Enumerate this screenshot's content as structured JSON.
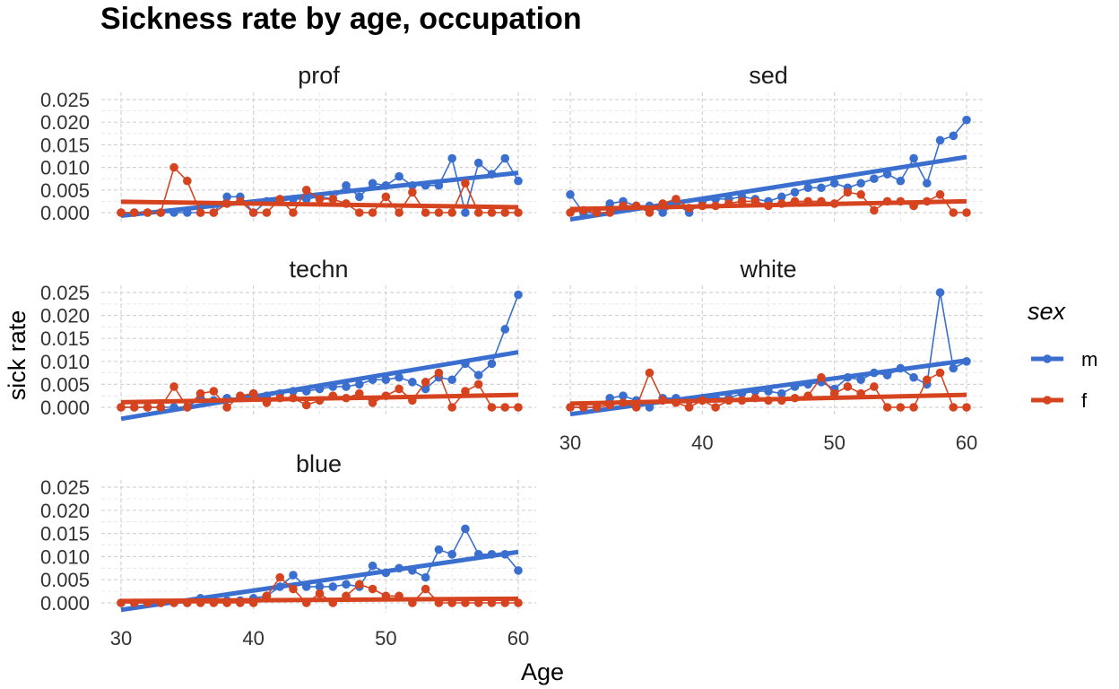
{
  "chart_data": {
    "type": "line",
    "title": "Sickness rate by age, occupation",
    "xlabel": "Age",
    "ylabel": "sick rate",
    "xlim": [
      30,
      60
    ],
    "ylim": [
      0,
      0.025
    ],
    "x_ticks": [
      30,
      40,
      50,
      60
    ],
    "y_ticks": [
      0.0,
      0.005,
      0.01,
      0.015,
      0.02,
      0.025
    ],
    "y_tick_labels": [
      "0.000",
      "0.005",
      "0.010",
      "0.015",
      "0.020",
      "0.025"
    ],
    "grid": true,
    "legend": {
      "title": "sex",
      "placement": "right",
      "entries": [
        {
          "label": "m",
          "color": "#3a6fd0"
        },
        {
          "label": "f",
          "color": "#d6431f"
        }
      ]
    },
    "colors": {
      "m": "#3a6fd0",
      "f": "#d6431f"
    },
    "x": [
      30,
      31,
      32,
      33,
      34,
      35,
      36,
      37,
      38,
      39,
      40,
      41,
      42,
      43,
      44,
      45,
      46,
      47,
      48,
      49,
      50,
      51,
      52,
      53,
      54,
      55,
      56,
      57,
      58,
      59,
      60
    ],
    "facets": [
      {
        "name": "prof",
        "series": [
          {
            "name": "m",
            "values": [
              0,
              0,
              0,
              0,
              0,
              0,
              0,
              0,
              0.0035,
              0.0035,
              0,
              0.0025,
              0.0025,
              0.003,
              0.003,
              0.0035,
              0.003,
              0.006,
              0.0035,
              0.0065,
              0.006,
              0.008,
              0.006,
              0.006,
              0.006,
              0.012,
              0,
              0.011,
              0.0085,
              0.012,
              0.007
            ],
            "trend": [
              -0.0007,
              0.0088
            ]
          },
          {
            "name": "f",
            "values": [
              0,
              0,
              0,
              0,
              0.01,
              0.007,
              0,
              0,
              0.002,
              0.0025,
              0,
              0,
              0.003,
              0,
              0.005,
              0.003,
              0.003,
              0.002,
              0,
              0,
              0.0035,
              0,
              0.0045,
              0,
              0,
              0,
              0.0065,
              0,
              0,
              0,
              0
            ],
            "trend": [
              0.0024,
              0.0012
            ]
          }
        ]
      },
      {
        "name": "sed",
        "series": [
          {
            "name": "m",
            "values": [
              0.004,
              0,
              0,
              0.002,
              0.0025,
              0.0015,
              0.0015,
              0,
              0.002,
              0,
              0.0025,
              0.003,
              0.003,
              0.0035,
              0.003,
              0.0025,
              0.0035,
              0.0045,
              0.0055,
              0.0055,
              0.0065,
              0.0055,
              0.0065,
              0.0075,
              0.0085,
              0.007,
              0.012,
              0.0065,
              0.016,
              0.017,
              0.0205
            ],
            "trend": [
              -0.0015,
              0.0123
            ]
          },
          {
            "name": "f",
            "values": [
              0,
              0.0005,
              0,
              0,
              0.0015,
              0.0015,
              0,
              0.002,
              0.003,
              0.001,
              0.0015,
              0.0015,
              0.002,
              0.0025,
              0.0025,
              0.0015,
              0.002,
              0.0025,
              0.0025,
              0.0025,
              0.002,
              0.0045,
              0.004,
              0.0005,
              0.0025,
              0.0025,
              0.0015,
              0.0025,
              0.004,
              0,
              0
            ],
            "trend": [
              0.0008,
              0.0025
            ]
          }
        ]
      },
      {
        "name": "techn",
        "series": [
          {
            "name": "m",
            "values": [
              0,
              0,
              0,
              0,
              0,
              0,
              0.002,
              0.0015,
              0.002,
              0.002,
              0.003,
              0.0025,
              0.003,
              0.0035,
              0.0035,
              0.004,
              0.0045,
              0.0045,
              0.005,
              0.006,
              0.006,
              0.0065,
              0.0055,
              0.004,
              0.0065,
              0.006,
              0.0095,
              0.007,
              0.0095,
              0.017,
              0.0245
            ],
            "trend": [
              -0.0025,
              0.012
            ]
          },
          {
            "name": "f",
            "values": [
              0,
              0,
              0,
              0,
              0.0045,
              0,
              0.003,
              0.0035,
              0,
              0.0025,
              0.003,
              0.001,
              0.002,
              0.002,
              0.0005,
              0.0015,
              0.0025,
              0.002,
              0.003,
              0.001,
              0.0025,
              0.004,
              0.0015,
              0.0055,
              0.0075,
              0,
              0.0035,
              0.005,
              0,
              0,
              0
            ],
            "trend": [
              0.0011,
              0.0027
            ]
          }
        ]
      },
      {
        "name": "white",
        "series": [
          {
            "name": "m",
            "values": [
              0,
              0,
              0,
              0.002,
              0.0025,
              0.0015,
              0,
              0.002,
              0.002,
              0.0015,
              0.002,
              0.002,
              0.002,
              0.003,
              0.0035,
              0.0035,
              0.003,
              0.0045,
              0.005,
              0.0055,
              0.004,
              0.0065,
              0.006,
              0.0075,
              0.007,
              0.0085,
              0.0065,
              0.005,
              0.025,
              0.0085,
              0.01
            ],
            "trend": [
              -0.0015,
              0.0102
            ]
          },
          {
            "name": "f",
            "values": [
              0,
              0,
              0,
              0.0005,
              0.001,
              0,
              0.0075,
              0.0015,
              0.001,
              0,
              0.0015,
              0,
              0.0015,
              0.0015,
              0.002,
              0.0015,
              0.0015,
              0.002,
              0.0025,
              0.0065,
              0.003,
              0.0045,
              0.003,
              0.0045,
              0,
              0,
              0,
              0.006,
              0.0075,
              0,
              0
            ],
            "trend": [
              0.0008,
              0.0027
            ]
          }
        ]
      },
      {
        "name": "blue",
        "series": [
          {
            "name": "m",
            "values": [
              0,
              0,
              0,
              0,
              0,
              0,
              0.001,
              0.0005,
              0.0005,
              0.0005,
              0.001,
              0.0015,
              0.0035,
              0.006,
              0.0035,
              0.0035,
              0.0035,
              0.004,
              0.0035,
              0.008,
              0.0065,
              0.0075,
              0.007,
              0.0055,
              0.0115,
              0.0105,
              0.016,
              0.0105,
              0.0105,
              0.0105,
              0.007
            ],
            "trend": [
              -0.0015,
              0.011
            ]
          },
          {
            "name": "f",
            "values": [
              0,
              0,
              0,
              0,
              0,
              0,
              0,
              0,
              0,
              0,
              0,
              0.0015,
              0.0055,
              0.003,
              0,
              0.002,
              0,
              0.0015,
              0.004,
              0.003,
              0.0015,
              0.0015,
              0,
              0.003,
              0,
              0,
              0,
              0,
              0,
              0,
              0
            ],
            "trend": [
              0.0004,
              0.0009
            ]
          }
        ]
      }
    ]
  }
}
